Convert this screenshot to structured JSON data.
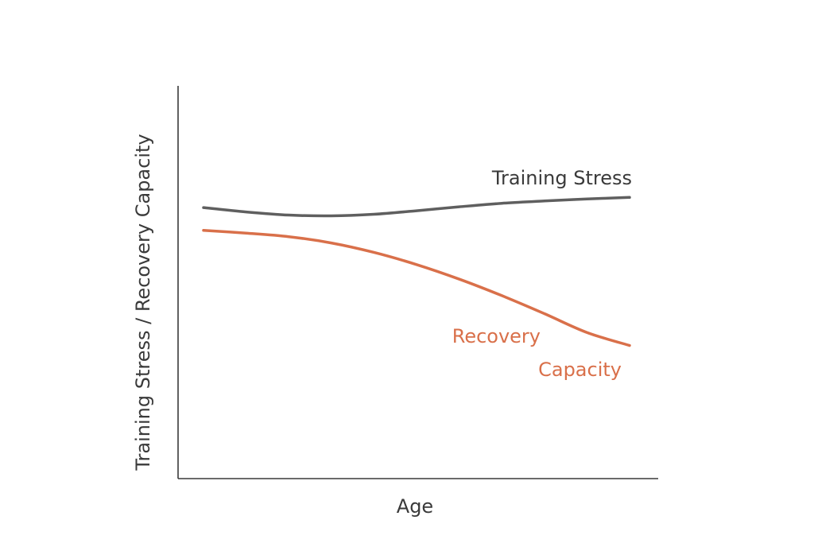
{
  "chart_data": {
    "type": "line",
    "title": "",
    "xlabel": "Age",
    "ylabel": "Training Stress / Recovery Capacity",
    "xlim": [
      0,
      100
    ],
    "ylim": [
      0,
      100
    ],
    "grid": false,
    "legend": "none",
    "x_ticks": [],
    "y_ticks": [],
    "x": [
      0,
      10,
      20,
      30,
      40,
      50,
      60,
      70,
      80,
      90,
      100
    ],
    "series": [
      {
        "name": "Training Stress",
        "label_lines": [
          "Training Stress"
        ],
        "color": "#5f5f5f",
        "values": [
          69.0,
          67.9,
          67.1,
          66.9,
          67.3,
          68.2,
          69.2,
          70.1,
          70.7,
          71.2,
          71.6
        ]
      },
      {
        "name": "Recovery Capacity",
        "label_lines": [
          "Recovery",
          "Capacity"
        ],
        "color": "#d9704a",
        "values": [
          63.2,
          62.5,
          61.6,
          60.0,
          57.6,
          54.5,
          50.8,
          46.6,
          42.0,
          37.2,
          33.9
        ]
      }
    ]
  }
}
